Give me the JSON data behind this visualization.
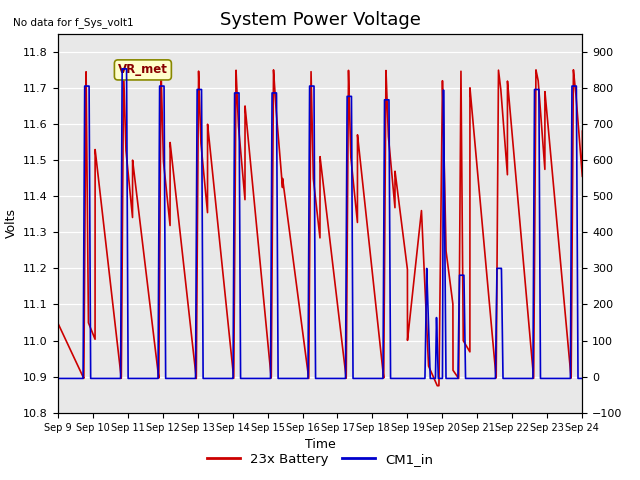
{
  "title": "System Power Voltage",
  "no_data_label": "No data for f_Sys_volt1",
  "xlabel": "Time",
  "ylabel_left": "Volts",
  "ylim_left": [
    10.8,
    11.85
  ],
  "ylim_right": [
    -100,
    950
  ],
  "yticks_left": [
    10.8,
    10.9,
    11.0,
    11.1,
    11.2,
    11.3,
    11.4,
    11.5,
    11.6,
    11.7,
    11.8
  ],
  "yticks_right": [
    -100,
    0,
    100,
    200,
    300,
    400,
    500,
    600,
    700,
    800,
    900
  ],
  "xtick_positions": [
    9,
    10,
    11,
    12,
    13,
    14,
    15,
    16,
    17,
    18,
    19,
    20,
    21,
    22,
    23,
    24
  ],
  "xtick_labels": [
    "Sep 9",
    "Sep 10",
    "Sep 11",
    "Sep 12",
    "Sep 13",
    "Sep 14",
    "Sep 15",
    "Sep 16",
    "Sep 17",
    "Sep 18",
    "Sep 19",
    "Sep 20",
    "Sep 21",
    "Sep 22",
    "Sep 23",
    "Sep 24"
  ],
  "bg_color": "#e8e8e8",
  "grid_color": "white",
  "red_color": "#cc0000",
  "blue_color": "#0000cc",
  "legend_entries": [
    "23x Battery",
    "CM1_in"
  ],
  "title_fontsize": 13,
  "label_fontsize": 9,
  "tick_fontsize": 8,
  "vr_box_color": "#ffffcc",
  "vr_box_edge": "#888800",
  "vr_text_color": "#880000"
}
